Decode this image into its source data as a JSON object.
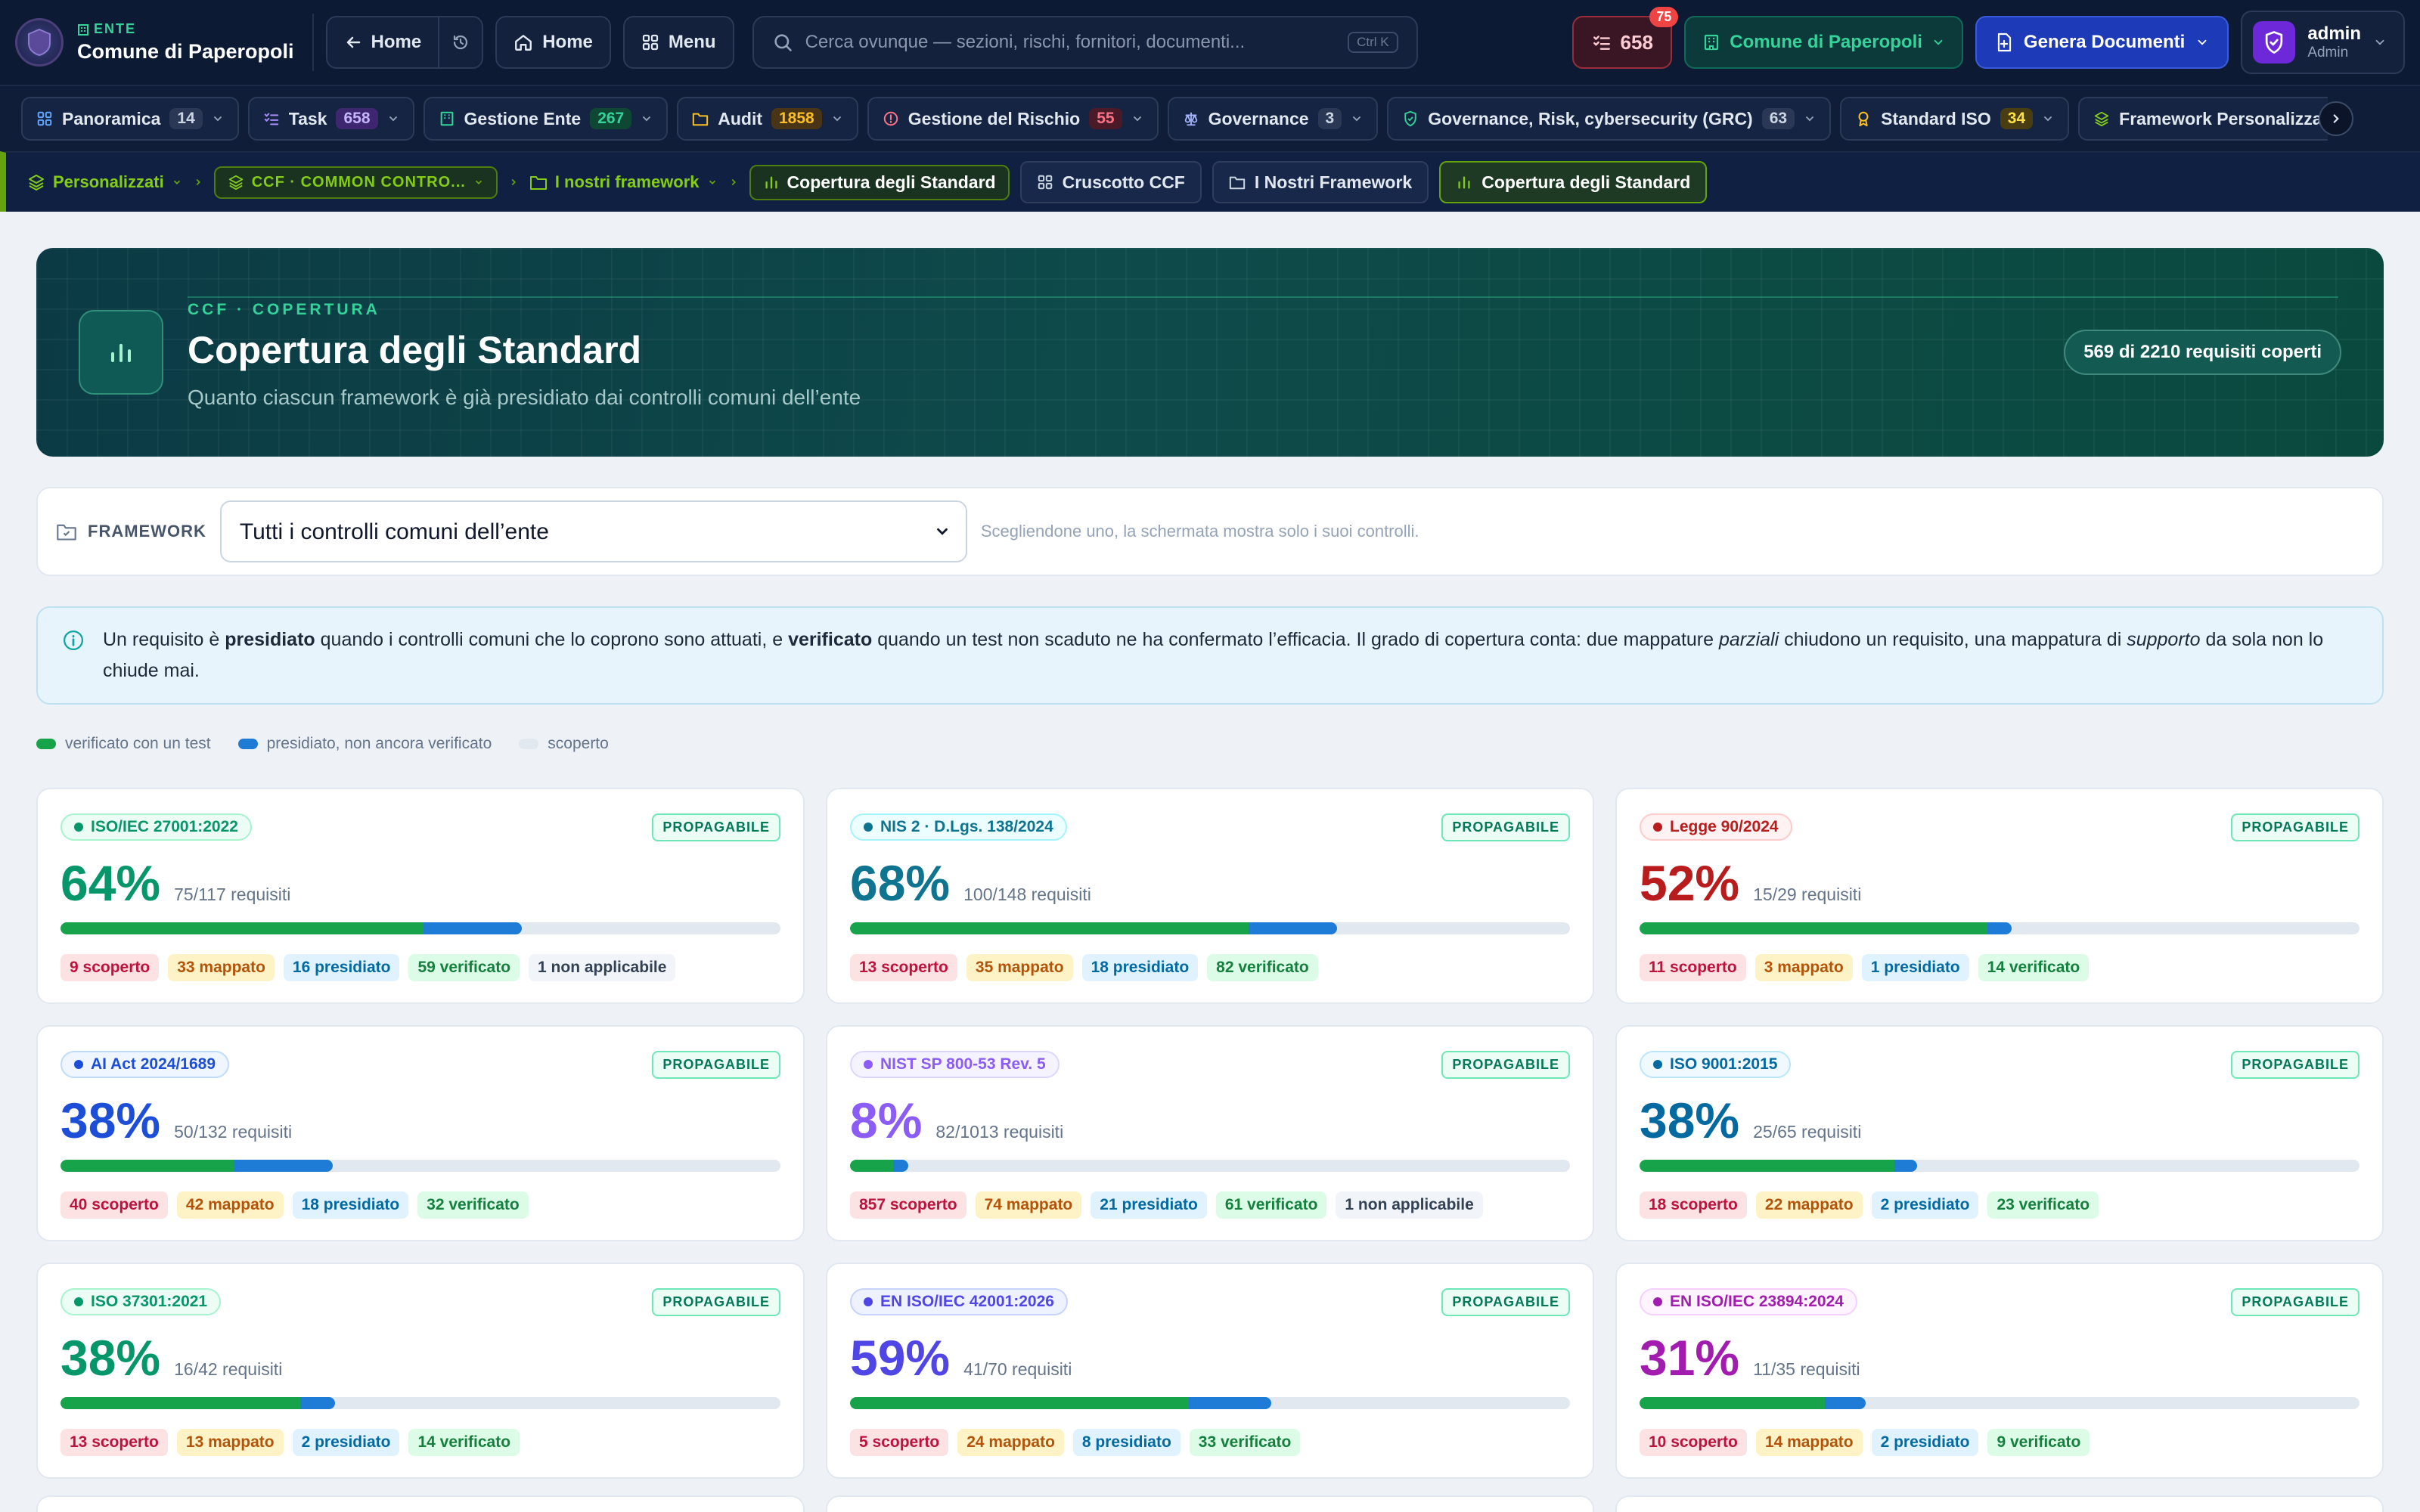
{
  "topbar": {
    "brand_small": "ENTE",
    "brand_name": "Comune di Paperopoli",
    "back_home": "Home",
    "home": "Home",
    "menu": "Menu",
    "search_placeholder": "Cerca ovunque — sezioni, rischi, fornitori, documenti...",
    "search_shortcut": "Ctrl K",
    "tasks_count": "658",
    "tasks_badge": "75",
    "ente_selector": "Comune di Paperopoli",
    "generate": "Genera Documenti",
    "user_name": "admin",
    "user_role": "Admin"
  },
  "nav": [
    {
      "label": "Panoramica",
      "count": "14",
      "tone": "c-slate",
      "icon": "grid-icon",
      "color": "#60a5fa"
    },
    {
      "label": "Task",
      "count": "658",
      "tone": "c-purple",
      "icon": "checklist-icon",
      "color": "#a78bfa"
    },
    {
      "label": "Gestione Ente",
      "count": "267",
      "tone": "c-green",
      "icon": "building-icon",
      "color": "#34d399"
    },
    {
      "label": "Audit",
      "count": "1858",
      "tone": "c-amber",
      "icon": "folder-icon",
      "color": "#fbbf24"
    },
    {
      "label": "Gestione del Rischio",
      "count": "55",
      "tone": "c-red",
      "icon": "alert-icon",
      "color": "#fb7185"
    },
    {
      "label": "Governance",
      "count": "3",
      "tone": "c-slate",
      "icon": "scale-icon",
      "color": "#a5b4fc"
    },
    {
      "label": "Governance, Risk, cybersecurity (GRC)",
      "count": "63",
      "tone": "c-slate",
      "icon": "shield-icon",
      "color": "#34d399"
    },
    {
      "label": "Standard ISO",
      "count": "34",
      "tone": "c-yellow",
      "icon": "award-icon",
      "color": "#fbbf24"
    },
    {
      "label": "Framework Personalizzati",
      "count": "",
      "tone": "c-slate",
      "icon": "layers-icon",
      "color": "#84cc16"
    }
  ],
  "breadcrumbs": {
    "root": "Personalizzati",
    "ccf": "CCF · COMMON CONTRO...",
    "ours": "I nostri framework",
    "current": "Copertura degli Standard"
  },
  "context_tabs": [
    {
      "label": "Cruscotto CCF",
      "active": false
    },
    {
      "label": "I Nostri Framework",
      "active": false
    },
    {
      "label": "Copertura degli Standard",
      "active": true
    }
  ],
  "hero": {
    "eyebrow": "CCF · COPERTURA",
    "title": "Copertura degli Standard",
    "subtitle": "Quanto ciascun framework è già presidiato dai controlli comuni dell’ente",
    "pill": "569 di 2210 requisiti coperti"
  },
  "framework_filter": {
    "label": "FRAMEWORK",
    "selected": "Tutti i controlli comuni dell’ente",
    "hint": "Scegliendone uno, la schermata mostra solo i suoi controlli."
  },
  "info": {
    "p1": "Un requisito è ",
    "b1": "presidiato",
    "p2": " quando i controlli comuni che lo coprono sono attuati, e ",
    "b2": "verificato",
    "p3": " quando un test non scaduto ne ha confermato l’efficacia. Il grado di copertura conta: due mappature ",
    "i1": "parziali",
    "p4": " chiudono un requisito, una mappatura di ",
    "i2": "supporto",
    "p5": " da sola non lo chiude mai."
  },
  "legend": {
    "verified": "verificato con un test",
    "covered": "presidiato, non ancora verificato",
    "uncovered": "scoperto",
    "colors": {
      "verified": "#16a34a",
      "covered": "#1e7bd6",
      "uncovered": "#e2e8f0"
    }
  },
  "propagable_label": "PROPAGABILE",
  "cards": [
    {
      "name": "ISO/IEC 27001:2022",
      "color": "#059669",
      "bg": "#ecfdf5",
      "border": "#a7f3d0",
      "pct": "64%",
      "req": "75/117 requisiti",
      "verified_frac": 0.504,
      "covered_frac": 0.137,
      "stats": [
        {
          "t": "9 scoperto",
          "c": "s-sc"
        },
        {
          "t": "33 mappato",
          "c": "s-ma"
        },
        {
          "t": "16 presidiato",
          "c": "s-pr"
        },
        {
          "t": "59 verificato",
          "c": "s-ve"
        },
        {
          "t": "1 non applicabile",
          "c": "s-na"
        }
      ]
    },
    {
      "name": "NIS 2 · D.Lgs. 138/2024",
      "color": "#0e7490",
      "bg": "#ecfeff",
      "border": "#a5f3fc",
      "pct": "68%",
      "req": "100/148 requisiti",
      "verified_frac": 0.554,
      "covered_frac": 0.122,
      "stats": [
        {
          "t": "13 scoperto",
          "c": "s-sc"
        },
        {
          "t": "35 mappato",
          "c": "s-ma"
        },
        {
          "t": "18 presidiato",
          "c": "s-pr"
        },
        {
          "t": "82 verificato",
          "c": "s-ve"
        }
      ]
    },
    {
      "name": "Legge 90/2024",
      "color": "#b91c1c",
      "bg": "#fef2f2",
      "border": "#fecaca",
      "pct": "52%",
      "req": "15/29 requisiti",
      "verified_frac": 0.483,
      "covered_frac": 0.034,
      "stats": [
        {
          "t": "11 scoperto",
          "c": "s-sc"
        },
        {
          "t": "3 mappato",
          "c": "s-ma"
        },
        {
          "t": "1 presidiato",
          "c": "s-pr"
        },
        {
          "t": "14 verificato",
          "c": "s-ve"
        }
      ]
    },
    {
      "name": "AI Act 2024/1689",
      "color": "#1d4ed8",
      "bg": "#eff6ff",
      "border": "#bfdbfe",
      "pct": "38%",
      "req": "50/132 requisiti",
      "verified_frac": 0.242,
      "covered_frac": 0.136,
      "stats": [
        {
          "t": "40 scoperto",
          "c": "s-sc"
        },
        {
          "t": "42 mappato",
          "c": "s-ma"
        },
        {
          "t": "18 presidiato",
          "c": "s-pr"
        },
        {
          "t": "32 verificato",
          "c": "s-ve"
        }
      ]
    },
    {
      "name": "NIST SP 800-53 Rev. 5",
      "color": "#8b5cf6",
      "bg": "#f5f3ff",
      "border": "#ddd6fe",
      "pct": "8%",
      "req": "82/1013 requisiti",
      "verified_frac": 0.06,
      "covered_frac": 0.021,
      "stats": [
        {
          "t": "857 scoperto",
          "c": "s-sc"
        },
        {
          "t": "74 mappato",
          "c": "s-ma"
        },
        {
          "t": "21 presidiato",
          "c": "s-pr"
        },
        {
          "t": "61 verificato",
          "c": "s-ve"
        },
        {
          "t": "1 non applicabile",
          "c": "s-na"
        }
      ]
    },
    {
      "name": "ISO 9001:2015",
      "color": "#0369a1",
      "bg": "#f0f9ff",
      "border": "#bae6fd",
      "pct": "38%",
      "req": "25/65 requisiti",
      "verified_frac": 0.354,
      "covered_frac": 0.031,
      "stats": [
        {
          "t": "18 scoperto",
          "c": "s-sc"
        },
        {
          "t": "22 mappato",
          "c": "s-ma"
        },
        {
          "t": "2 presidiato",
          "c": "s-pr"
        },
        {
          "t": "23 verificato",
          "c": "s-ve"
        }
      ]
    },
    {
      "name": "ISO 37301:2021",
      "color": "#059669",
      "bg": "#ecfdf5",
      "border": "#a7f3d0",
      "pct": "38%",
      "req": "16/42 requisiti",
      "verified_frac": 0.333,
      "covered_frac": 0.048,
      "stats": [
        {
          "t": "13 scoperto",
          "c": "s-sc"
        },
        {
          "t": "13 mappato",
          "c": "s-ma"
        },
        {
          "t": "2 presidiato",
          "c": "s-pr"
        },
        {
          "t": "14 verificato",
          "c": "s-ve"
        }
      ]
    },
    {
      "name": "EN ISO/IEC 42001:2026",
      "color": "#4f46e5",
      "bg": "#eef2ff",
      "border": "#c7d2fe",
      "pct": "59%",
      "req": "41/70 requisiti",
      "verified_frac": 0.471,
      "covered_frac": 0.114,
      "stats": [
        {
          "t": "5 scoperto",
          "c": "s-sc"
        },
        {
          "t": "24 mappato",
          "c": "s-ma"
        },
        {
          "t": "8 presidiato",
          "c": "s-pr"
        },
        {
          "t": "33 verificato",
          "c": "s-ve"
        }
      ]
    },
    {
      "name": "EN ISO/IEC 23894:2024",
      "color": "#a21caf",
      "bg": "#fdf4ff",
      "border": "#f5d0fe",
      "pct": "31%",
      "req": "11/35 requisiti",
      "verified_frac": 0.257,
      "covered_frac": 0.057,
      "stats": [
        {
          "t": "10 scoperto",
          "c": "s-sc"
        },
        {
          "t": "14 mappato",
          "c": "s-ma"
        },
        {
          "t": "2 presidiato",
          "c": "s-pr"
        },
        {
          "t": "9 verificato",
          "c": "s-ve"
        }
      ]
    }
  ]
}
